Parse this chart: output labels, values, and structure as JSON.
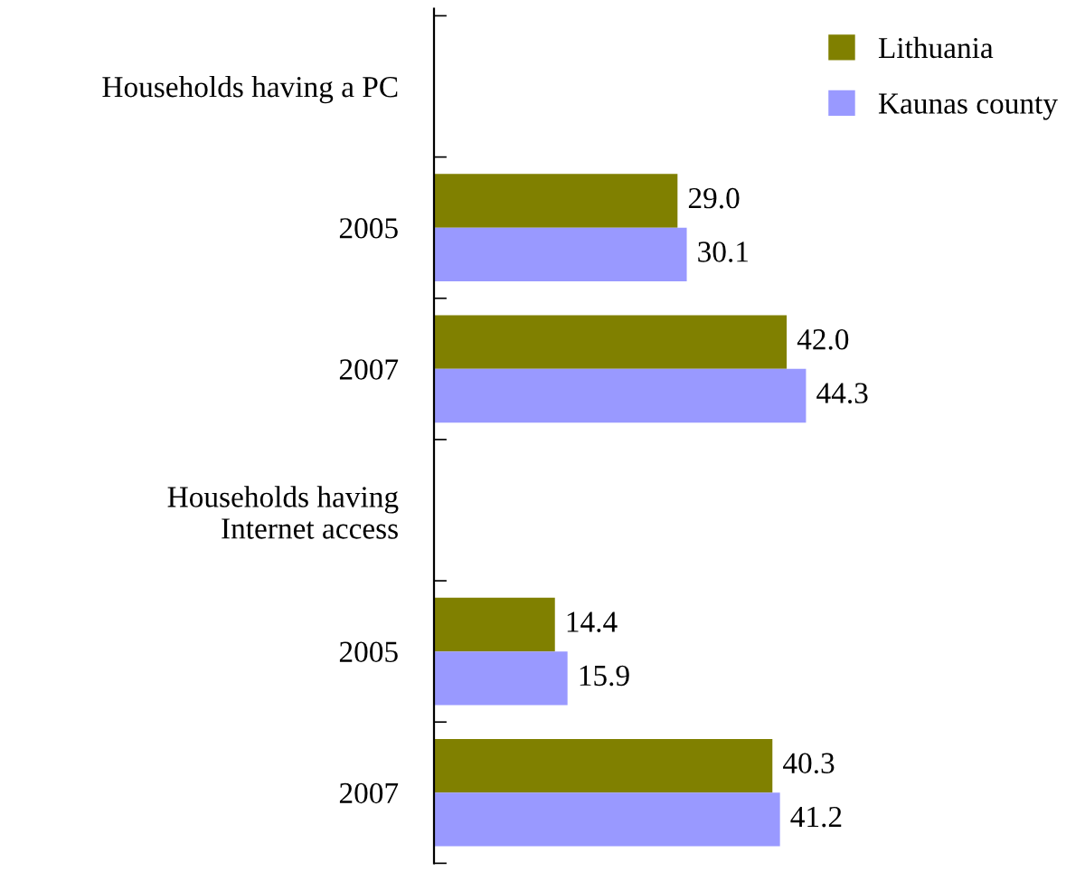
{
  "chart_data": {
    "type": "bar",
    "orientation": "horizontal",
    "categories": [
      "Households having a PC",
      "2005",
      "2007",
      "Households having\nInternet access",
      "2005",
      "2007"
    ],
    "series": [
      {
        "name": "Lithuania",
        "color": "#808000",
        "values": [
          null,
          29.0,
          42.0,
          null,
          14.4,
          40.3
        ],
        "value_labels": [
          null,
          "29.0",
          "42.0",
          null,
          "14.4",
          "40.3"
        ]
      },
      {
        "name": "Kaunas county",
        "color": "#9999ff",
        "values": [
          null,
          30.1,
          44.3,
          null,
          15.9,
          41.2
        ],
        "value_labels": [
          null,
          "30.1",
          "44.3",
          null,
          "15.9",
          "41.2"
        ]
      }
    ],
    "legend": "top right",
    "grid": false
  }
}
